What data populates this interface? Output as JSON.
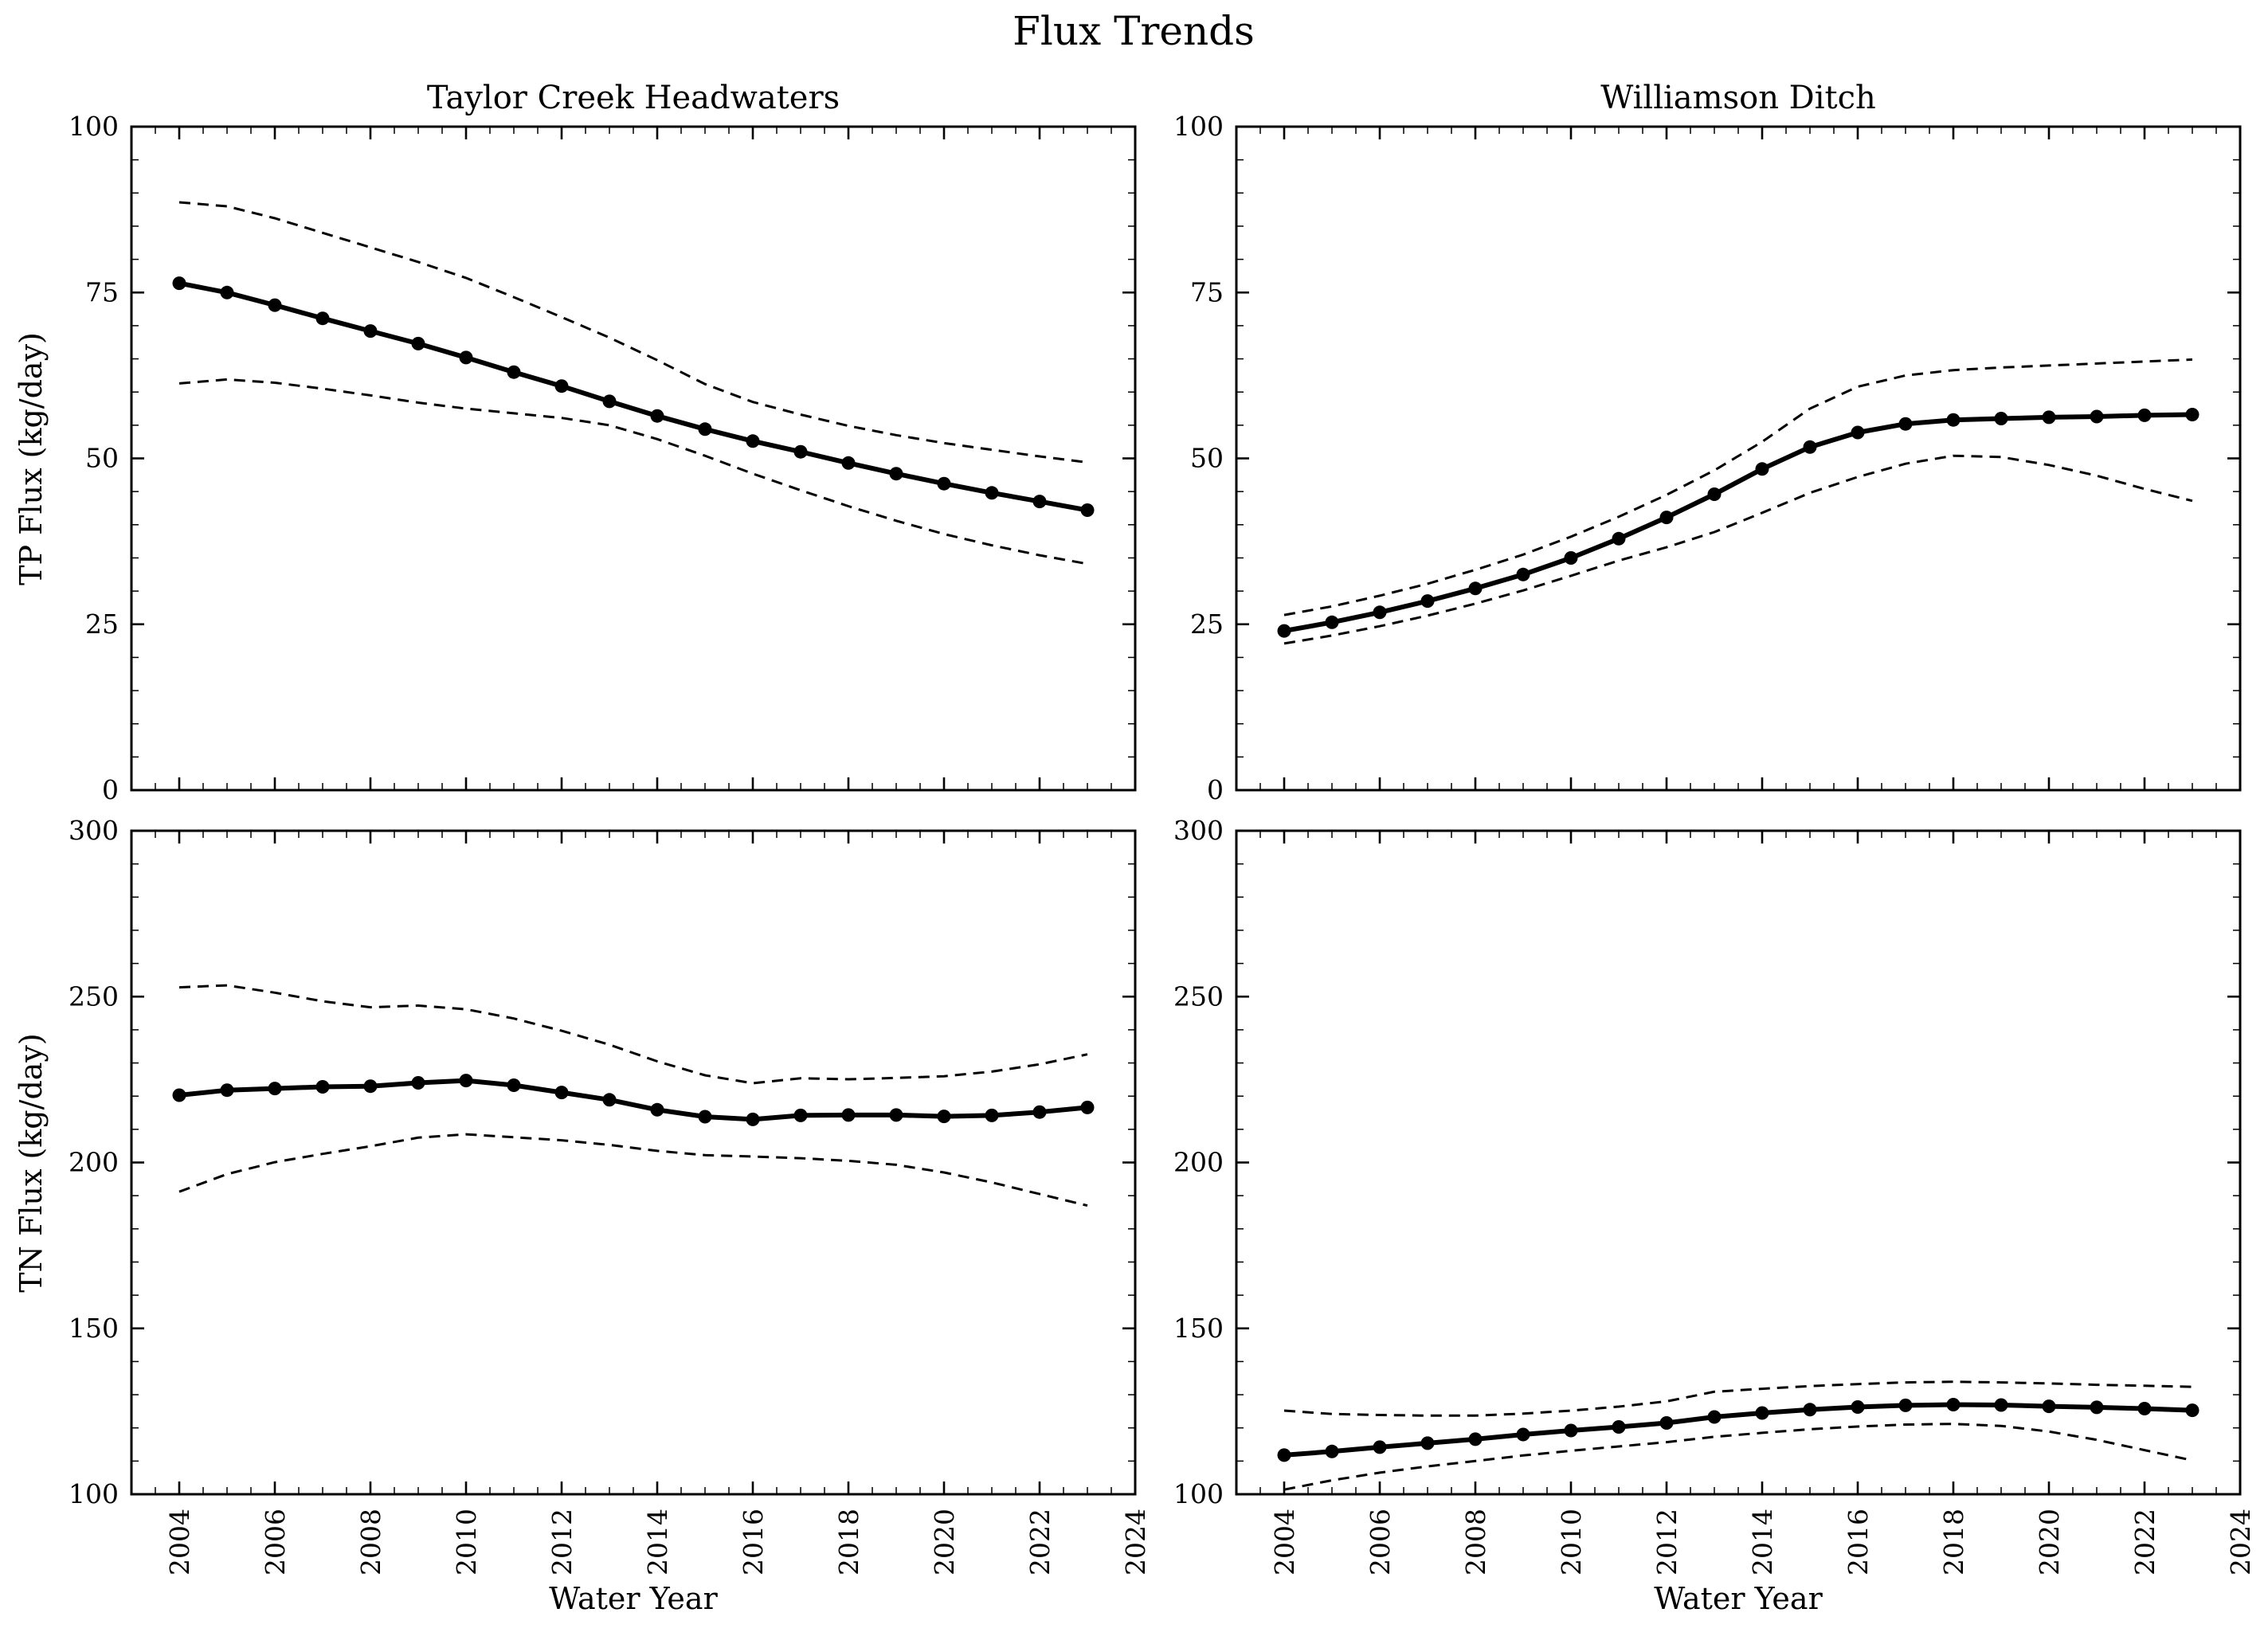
{
  "figure": {
    "suptitle": "Flux Trends"
  },
  "chart_data": [
    {
      "id": "tp_taylor_creek",
      "type": "line",
      "position": {
        "row": 0,
        "col": 0
      },
      "title": "Taylor Creek Headwaters",
      "ylabel": "TP Flux (kg/day)",
      "xlabel": "",
      "grid": false,
      "legend": "none",
      "xlim": [
        2003,
        2024
      ],
      "ylim": [
        0,
        100
      ],
      "xticks": [
        2004,
        2006,
        2008,
        2010,
        2012,
        2014,
        2016,
        2018,
        2020,
        2022,
        2024
      ],
      "yticks": [
        0,
        25,
        50,
        75,
        100
      ],
      "x_minor_step": 0.5,
      "y_minor_step": 5,
      "x": [
        2004,
        2005,
        2006,
        2007,
        2008,
        2009,
        2010,
        2011,
        2012,
        2013,
        2014,
        2015,
        2016,
        2017,
        2018,
        2019,
        2020,
        2021,
        2022,
        2023
      ],
      "series": [
        {
          "name": "upper_confidence",
          "style": "dashed",
          "marker": "none",
          "color": "#000000",
          "values": [
            88.6,
            88.0,
            86.2,
            84.0,
            81.8,
            79.6,
            77.2,
            74.3,
            71.3,
            68.2,
            64.8,
            61.2,
            58.5,
            56.6,
            54.9,
            53.5,
            52.3,
            51.3,
            50.3,
            49.4
          ]
        },
        {
          "name": "lower_confidence",
          "style": "dashed",
          "marker": "none",
          "color": "#000000",
          "values": [
            61.3,
            61.9,
            61.4,
            60.5,
            59.5,
            58.4,
            57.5,
            56.8,
            56.1,
            55.0,
            52.9,
            50.4,
            47.7,
            45.2,
            42.8,
            40.6,
            38.6,
            36.9,
            35.4,
            34.1
          ]
        },
        {
          "name": "flux_trend",
          "style": "solid",
          "marker": "circle",
          "color": "#000000",
          "values": [
            76.4,
            75.0,
            73.1,
            71.1,
            69.2,
            67.3,
            65.2,
            63.0,
            60.9,
            58.6,
            56.4,
            54.4,
            52.6,
            51.0,
            49.3,
            47.7,
            46.2,
            44.8,
            43.5,
            42.2
          ]
        }
      ]
    },
    {
      "id": "tp_williamson_ditch",
      "type": "line",
      "position": {
        "row": 0,
        "col": 1
      },
      "title": "Williamson Ditch",
      "ylabel": "",
      "xlabel": "",
      "grid": false,
      "legend": "none",
      "xlim": [
        2003,
        2024
      ],
      "ylim": [
        0,
        100
      ],
      "xticks": [
        2004,
        2006,
        2008,
        2010,
        2012,
        2014,
        2016,
        2018,
        2020,
        2022,
        2024
      ],
      "yticks": [
        0,
        25,
        50,
        75,
        100
      ],
      "x_minor_step": 0.5,
      "y_minor_step": 5,
      "x": [
        2004,
        2005,
        2006,
        2007,
        2008,
        2009,
        2010,
        2011,
        2012,
        2013,
        2014,
        2015,
        2016,
        2017,
        2018,
        2019,
        2020,
        2021,
        2022,
        2023
      ],
      "series": [
        {
          "name": "upper_confidence",
          "style": "dashed",
          "marker": "none",
          "color": "#000000",
          "values": [
            26.4,
            27.7,
            29.3,
            31.1,
            33.2,
            35.5,
            38.2,
            41.2,
            44.5,
            48.2,
            52.5,
            57.5,
            60.8,
            62.5,
            63.3,
            63.7,
            64.0,
            64.3,
            64.6,
            64.9
          ]
        },
        {
          "name": "lower_confidence",
          "style": "dashed",
          "marker": "none",
          "color": "#000000",
          "values": [
            22.1,
            23.3,
            24.7,
            26.3,
            28.1,
            30.1,
            32.3,
            34.6,
            36.6,
            38.9,
            41.8,
            44.8,
            47.2,
            49.2,
            50.4,
            50.2,
            49.0,
            47.4,
            45.4,
            43.6
          ]
        },
        {
          "name": "flux_trend",
          "style": "solid",
          "marker": "circle",
          "color": "#000000",
          "values": [
            24.0,
            25.3,
            26.8,
            28.5,
            30.4,
            32.5,
            35.0,
            37.9,
            41.1,
            44.6,
            48.4,
            51.7,
            53.9,
            55.2,
            55.8,
            56.0,
            56.2,
            56.3,
            56.5,
            56.6
          ]
        }
      ]
    },
    {
      "id": "tn_taylor_creek",
      "type": "line",
      "position": {
        "row": 1,
        "col": 0
      },
      "title": "",
      "ylabel": "TN Flux (kg/day)",
      "xlabel": "Water Year",
      "grid": false,
      "legend": "none",
      "xlim": [
        2003,
        2024
      ],
      "ylim": [
        100,
        300
      ],
      "xticks": [
        2004,
        2006,
        2008,
        2010,
        2012,
        2014,
        2016,
        2018,
        2020,
        2022,
        2024
      ],
      "yticks": [
        100,
        150,
        200,
        250,
        300
      ],
      "x_minor_step": 0.5,
      "y_minor_step": 10,
      "x": [
        2004,
        2005,
        2006,
        2007,
        2008,
        2009,
        2010,
        2011,
        2012,
        2013,
        2014,
        2015,
        2016,
        2017,
        2018,
        2019,
        2020,
        2021,
        2022,
        2023
      ],
      "series": [
        {
          "name": "upper_confidence",
          "style": "dashed",
          "marker": "none",
          "color": "#000000",
          "values": [
            252.8,
            253.4,
            251.2,
            248.6,
            246.8,
            247.3,
            246.2,
            243.4,
            239.7,
            235.5,
            230.5,
            226.3,
            223.9,
            225.4,
            225.1,
            225.5,
            226.0,
            227.4,
            229.6,
            232.6
          ]
        },
        {
          "name": "lower_confidence",
          "style": "dashed",
          "marker": "none",
          "color": "#000000",
          "values": [
            191.2,
            196.5,
            200.1,
            202.6,
            204.9,
            207.5,
            208.5,
            207.6,
            206.7,
            205.3,
            203.5,
            202.2,
            201.8,
            201.3,
            200.5,
            199.3,
            197.0,
            194.0,
            190.5,
            187.0
          ]
        },
        {
          "name": "flux_trend",
          "style": "solid",
          "marker": "circle",
          "color": "#000000",
          "values": [
            220.3,
            221.8,
            222.3,
            222.8,
            223.0,
            224.0,
            224.7,
            223.3,
            221.1,
            218.9,
            215.9,
            213.8,
            213.0,
            214.2,
            214.3,
            214.3,
            213.9,
            214.2,
            215.2,
            216.6
          ]
        }
      ]
    },
    {
      "id": "tn_williamson_ditch",
      "type": "line",
      "position": {
        "row": 1,
        "col": 1
      },
      "title": "",
      "ylabel": "",
      "xlabel": "Water Year",
      "grid": false,
      "legend": "none",
      "xlim": [
        2003,
        2024
      ],
      "ylim": [
        100,
        300
      ],
      "xticks": [
        2004,
        2006,
        2008,
        2010,
        2012,
        2014,
        2016,
        2018,
        2020,
        2022,
        2024
      ],
      "yticks": [
        100,
        150,
        200,
        250,
        300
      ],
      "x_minor_step": 0.5,
      "y_minor_step": 10,
      "x": [
        2004,
        2005,
        2006,
        2007,
        2008,
        2009,
        2010,
        2011,
        2012,
        2013,
        2014,
        2015,
        2016,
        2017,
        2018,
        2019,
        2020,
        2021,
        2022,
        2023
      ],
      "series": [
        {
          "name": "upper_confidence",
          "style": "dashed",
          "marker": "none",
          "color": "#000000",
          "values": [
            125.2,
            124.2,
            123.9,
            123.7,
            123.7,
            124.3,
            125.2,
            126.4,
            128.0,
            130.9,
            131.8,
            132.6,
            133.2,
            133.7,
            133.9,
            133.7,
            133.4,
            133.0,
            132.7,
            132.4
          ]
        },
        {
          "name": "lower_confidence",
          "style": "dashed",
          "marker": "none",
          "color": "#000000",
          "values": [
            101.4,
            104.2,
            106.5,
            108.4,
            110.0,
            111.7,
            113.1,
            114.4,
            115.7,
            117.3,
            118.5,
            119.6,
            120.4,
            121.0,
            121.2,
            120.6,
            118.9,
            116.4,
            113.3,
            110.2
          ]
        },
        {
          "name": "flux_trend",
          "style": "solid",
          "marker": "circle",
          "color": "#000000",
          "values": [
            111.8,
            112.9,
            114.2,
            115.4,
            116.6,
            118.0,
            119.2,
            120.3,
            121.5,
            123.3,
            124.5,
            125.5,
            126.3,
            126.8,
            127.0,
            126.9,
            126.5,
            126.2,
            125.8,
            125.3
          ]
        }
      ]
    }
  ]
}
